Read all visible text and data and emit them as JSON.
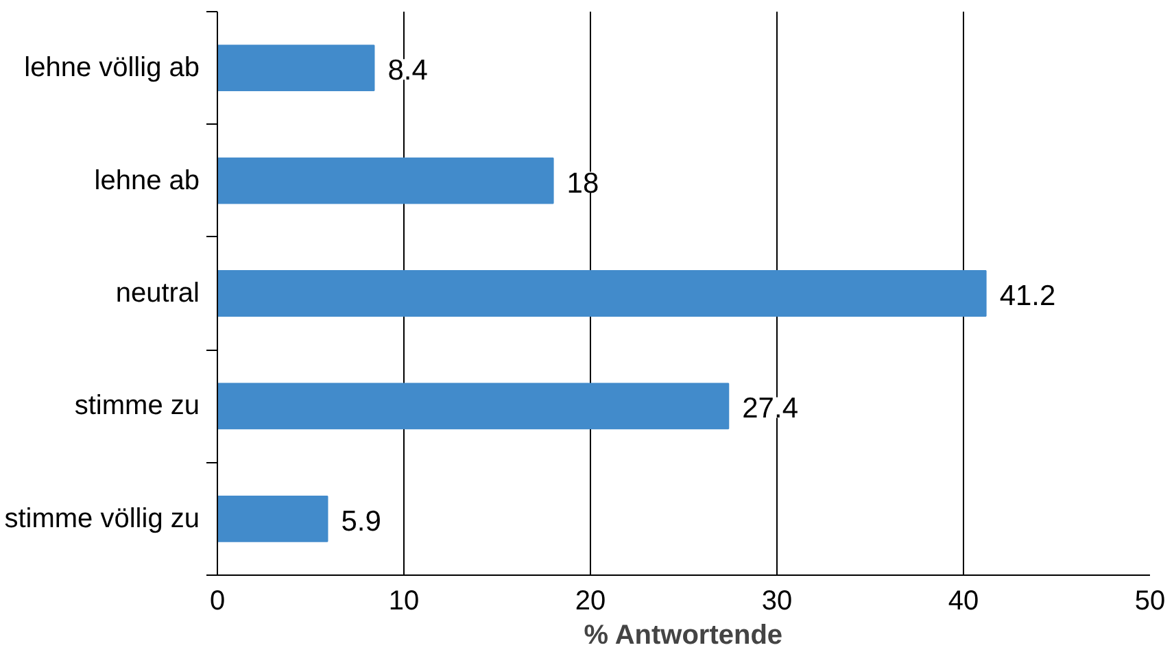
{
  "chart_data": {
    "type": "bar",
    "orientation": "horizontal",
    "xlabel": "% Antwortende",
    "categories": [
      "lehne völlig ab",
      "lehne ab",
      "neutral",
      "stimme zu",
      "stimme völlig zu"
    ],
    "values": [
      8.4,
      18,
      41.2,
      27.4,
      5.9
    ],
    "color": "#428bcb",
    "xlim": [
      0,
      50
    ],
    "xticks": [
      0,
      10,
      20,
      30,
      40,
      50
    ],
    "grid": "x",
    "data_labels": true
  }
}
